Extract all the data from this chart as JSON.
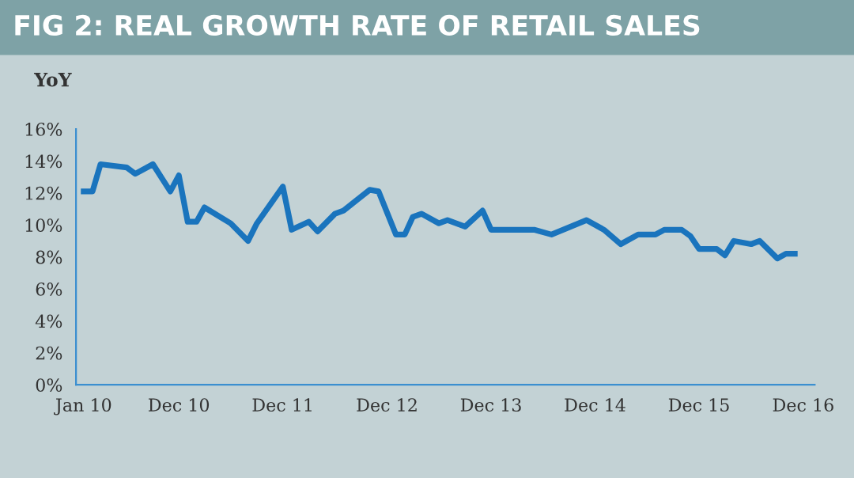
{
  "chart_data": {
    "type": "line",
    "title": "FIG 2: REAL GROWTH RATE OF RETAIL SALES",
    "ylabel": "YoY",
    "x": [
      "2010-01",
      "2010-02",
      "2010-03",
      "2010-06",
      "2010-07",
      "2010-09",
      "2010-11",
      "2010-12",
      "2011-01",
      "2011-02",
      "2011-03",
      "2011-06",
      "2011-08",
      "2011-09",
      "2011-12",
      "2012-01",
      "2012-03",
      "2012-04",
      "2012-06",
      "2012-07",
      "2012-10",
      "2012-11",
      "2013-01",
      "2013-02",
      "2013-03",
      "2013-04",
      "2013-06",
      "2013-07",
      "2013-09",
      "2013-11",
      "2013-12",
      "2014-05",
      "2014-07",
      "2014-11",
      "2015-01",
      "2015-03",
      "2015-05",
      "2015-07",
      "2015-08",
      "2015-10",
      "2015-11",
      "2015-12",
      "2016-02",
      "2016-03",
      "2016-04",
      "2016-06",
      "2016-07",
      "2016-09",
      "2016-10",
      "2016-11"
    ],
    "series": [
      {
        "color": "#1a74bd",
        "values": [
          12.1,
          12.1,
          13.8,
          13.6,
          13.2,
          13.8,
          12.1,
          13.1,
          10.2,
          10.2,
          11.1,
          10.1,
          9.0,
          10.1,
          12.4,
          9.7,
          10.2,
          9.6,
          10.7,
          10.9,
          12.2,
          12.1,
          9.4,
          9.4,
          10.5,
          10.7,
          10.1,
          10.3,
          9.9,
          10.9,
          9.7,
          9.7,
          9.4,
          10.3,
          9.7,
          8.8,
          9.4,
          9.4,
          9.7,
          9.7,
          9.3,
          8.5,
          8.5,
          8.1,
          9.0,
          8.8,
          9.0,
          7.9,
          8.2,
          8.2
        ]
      }
    ],
    "xlim": [
      "2009-12-05",
      "2017-01-10"
    ],
    "xticks": [
      {
        "value": "2010-01",
        "label": "Jan 10"
      },
      {
        "value": "2010-12",
        "label": "Dec 10"
      },
      {
        "value": "2011-12",
        "label": "Dec 11"
      },
      {
        "value": "2012-12",
        "label": "Dec 12"
      },
      {
        "value": "2013-12",
        "label": "Dec 13"
      },
      {
        "value": "2014-12",
        "label": "Dec 14"
      },
      {
        "value": "2015-12",
        "label": "Dec 15"
      },
      {
        "value": "2016-12",
        "label": "Dec 16"
      }
    ],
    "ylim": [
      0,
      16
    ],
    "yticks": [
      {
        "value": 0,
        "label": "0%"
      },
      {
        "value": 2,
        "label": "2%"
      },
      {
        "value": 4,
        "label": "4%"
      },
      {
        "value": 6,
        "label": "6%"
      },
      {
        "value": 8,
        "label": "8%"
      },
      {
        "value": 10,
        "label": "10%"
      },
      {
        "value": 12,
        "label": "12%"
      },
      {
        "value": 14,
        "label": "14%"
      },
      {
        "value": 16,
        "label": "16%"
      }
    ],
    "marker": "none",
    "line_style": "solid",
    "legend": false
  }
}
